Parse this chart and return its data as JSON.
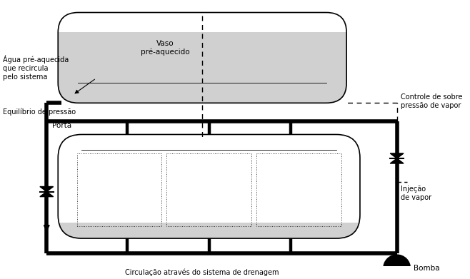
{
  "bg": "#ffffff",
  "black": "#000000",
  "gray_light": "#e8e8e8",
  "gray_fill": "#d0d0d0",
  "lw_pipe": 4.0,
  "lw_vessel": 1.2,
  "lw_dashed": 1.0,
  "fs": 7.5,
  "labels": {
    "vaso": "Vaso\npré-aquecido",
    "agua": "Água pré-aquecida\nque recircula\npelo sistema",
    "equilibrio": "Equilíbrio de pressão",
    "porta": "Porta",
    "controle": "Controle de sobre\npressão de vapor",
    "injecao": "Injeção\nde vapor",
    "circulacao": "Circulação através do sistema de drenagem",
    "bomba": "Bomba"
  }
}
